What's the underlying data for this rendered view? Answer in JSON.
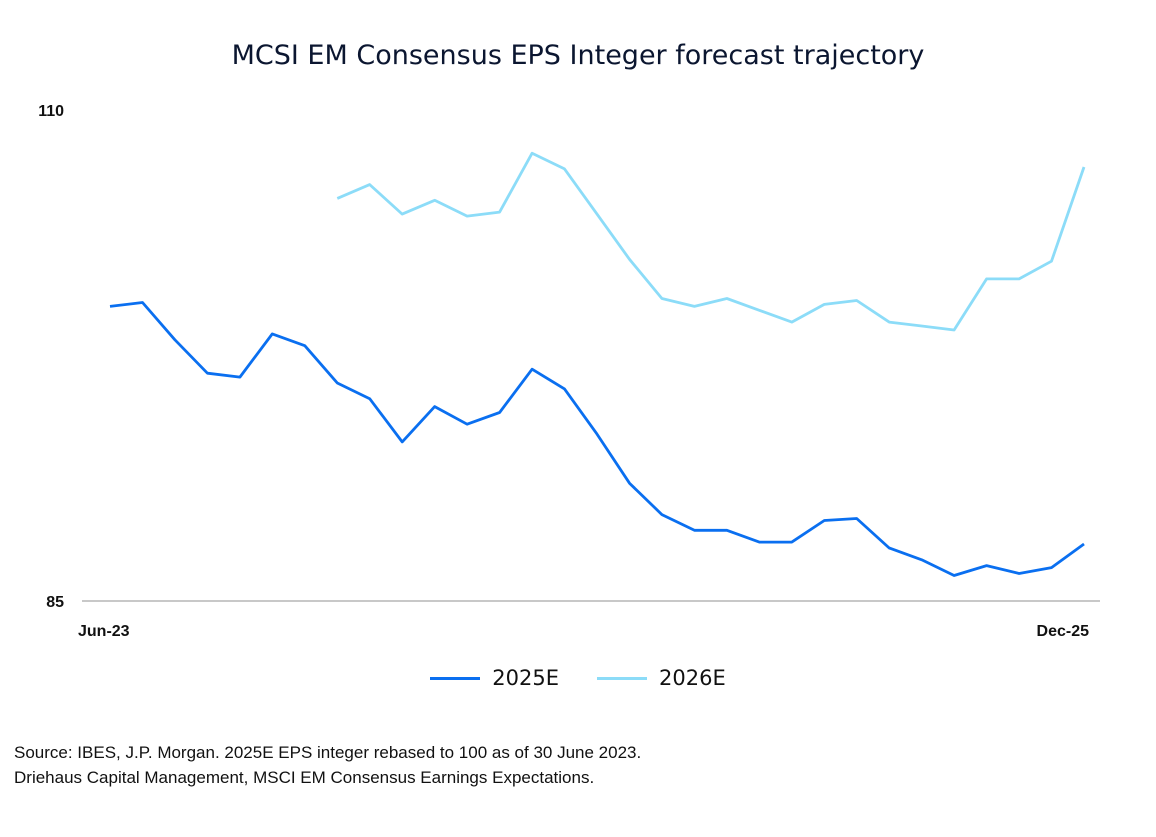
{
  "chart_data": {
    "type": "line",
    "title": "MCSI EM Consensus EPS Integer forecast trajectory",
    "x_tick_labels": [
      "Jun-23",
      "Dec-25"
    ],
    "y_tick_labels": [
      "110",
      "85"
    ],
    "ylim": [
      85,
      110
    ],
    "grid": false,
    "legend_placement": "bottom",
    "x_count": 31,
    "series": [
      {
        "name": "2025E",
        "color": "#0a6ff0",
        "start_index": 0,
        "values": [
          100.0,
          100.2,
          98.3,
          96.6,
          96.4,
          98.6,
          98.0,
          96.1,
          95.3,
          93.1,
          94.9,
          94.0,
          94.6,
          96.8,
          95.8,
          93.5,
          91.0,
          89.4,
          88.6,
          88.6,
          88.0,
          88.0,
          89.1,
          89.2,
          87.7,
          87.1,
          86.3,
          86.8,
          86.4,
          86.7,
          87.9
        ]
      },
      {
        "name": "2026E",
        "color": "#8cdcf8",
        "start_index": 7,
        "values": [
          105.5,
          106.2,
          104.7,
          105.4,
          104.6,
          104.8,
          107.8,
          107.0,
          104.7,
          102.4,
          100.4,
          100.0,
          100.4,
          99.8,
          99.2,
          100.1,
          100.3,
          99.2,
          99.0,
          98.8,
          101.4,
          101.4,
          102.3,
          107.1
        ]
      }
    ]
  },
  "source": {
    "line1": "Source: IBES, J.P. Morgan. 2025E EPS integer rebased to 100 as of 30 June 2023.",
    "line2": "Driehaus Capital Management, MSCI EM Consensus Earnings Expectations."
  }
}
